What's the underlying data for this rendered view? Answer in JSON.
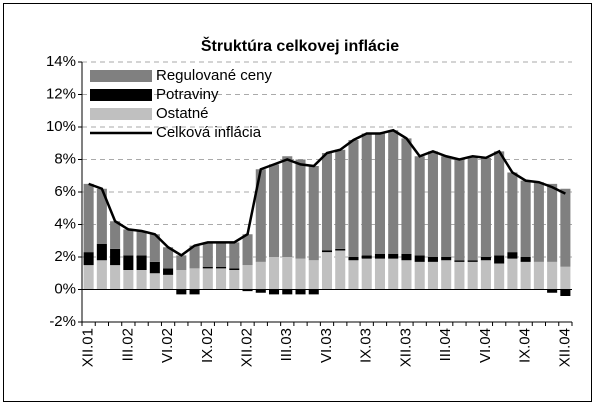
{
  "chart_data": {
    "type": "stacked_bar_line",
    "title": "Štruktúra celkovej inflácie",
    "categories": [
      "XII.01",
      null,
      null,
      "III.02",
      null,
      null,
      "VI.02",
      null,
      null,
      "IX.02",
      null,
      null,
      "XII.02",
      null,
      null,
      "III.03",
      null,
      null,
      "VI.03",
      null,
      null,
      "IX.03",
      null,
      null,
      "XII.03",
      null,
      null,
      "III.04",
      null,
      null,
      "VI.04",
      null,
      null,
      "IX.04",
      null,
      null,
      "XII.04"
    ],
    "series": [
      {
        "name": "Regulované ceny",
        "color": "#808080",
        "kind": "bar",
        "values": [
          4.2,
          3.4,
          1.7,
          1.6,
          1.5,
          1.7,
          1.3,
          0.9,
          1.4,
          1.5,
          1.5,
          1.6,
          1.9,
          5.7,
          5.7,
          6.2,
          6.1,
          5.8,
          6.0,
          6.1,
          7.2,
          7.5,
          7.4,
          7.6,
          7.1,
          6.1,
          6.5,
          6.2,
          6.2,
          6.4,
          6.1,
          6.4,
          4.9,
          4.7,
          4.9,
          4.8,
          4.8
        ]
      },
      {
        "name": "Potraviny",
        "color": "#000000",
        "kind": "bar",
        "values": [
          0.8,
          1.0,
          1.0,
          0.9,
          0.9,
          0.7,
          0.4,
          -0.3,
          -0.3,
          0.1,
          0.1,
          0.1,
          -0.1,
          -0.2,
          -0.3,
          -0.3,
          -0.3,
          -0.3,
          0.1,
          0.1,
          0.2,
          0.2,
          0.3,
          0.3,
          0.4,
          0.4,
          0.3,
          0.2,
          0.1,
          0.1,
          0.2,
          0.5,
          0.4,
          0.3,
          0.0,
          -0.2,
          -0.4
        ]
      },
      {
        "name": "Ostatné",
        "color": "#c0c0c0",
        "kind": "bar",
        "values": [
          1.5,
          1.8,
          1.5,
          1.2,
          1.2,
          1.0,
          0.9,
          1.2,
          1.3,
          1.3,
          1.3,
          1.2,
          1.5,
          1.7,
          2.0,
          2.0,
          1.9,
          1.8,
          2.3,
          2.4,
          1.8,
          1.9,
          1.9,
          1.9,
          1.8,
          1.7,
          1.7,
          1.8,
          1.7,
          1.7,
          1.8,
          1.6,
          1.9,
          1.7,
          1.7,
          1.7,
          1.4
        ]
      },
      {
        "name": "Celková inflácia",
        "color": "#000000",
        "kind": "line",
        "values": [
          6.5,
          6.2,
          4.2,
          3.7,
          3.6,
          3.4,
          2.6,
          2.1,
          2.7,
          2.9,
          2.9,
          2.9,
          3.4,
          7.4,
          7.7,
          8.0,
          7.7,
          7.6,
          8.4,
          8.6,
          9.2,
          9.6,
          9.6,
          9.8,
          9.3,
          8.2,
          8.5,
          8.2,
          8.0,
          8.2,
          8.1,
          8.5,
          7.2,
          6.7,
          6.6,
          6.3,
          5.9
        ]
      }
    ],
    "ylim": [
      -2,
      14
    ],
    "yticks": [
      {
        "value": -2,
        "label": "-2%"
      },
      {
        "value": 0,
        "label": "0%"
      },
      {
        "value": 2,
        "label": "2%"
      },
      {
        "value": 4,
        "label": "4%"
      },
      {
        "value": 6,
        "label": "6%"
      },
      {
        "value": 8,
        "label": "8%"
      },
      {
        "value": 10,
        "label": "10%"
      },
      {
        "value": 12,
        "label": "12%"
      },
      {
        "value": 14,
        "label": "14%"
      }
    ],
    "grid": true
  }
}
